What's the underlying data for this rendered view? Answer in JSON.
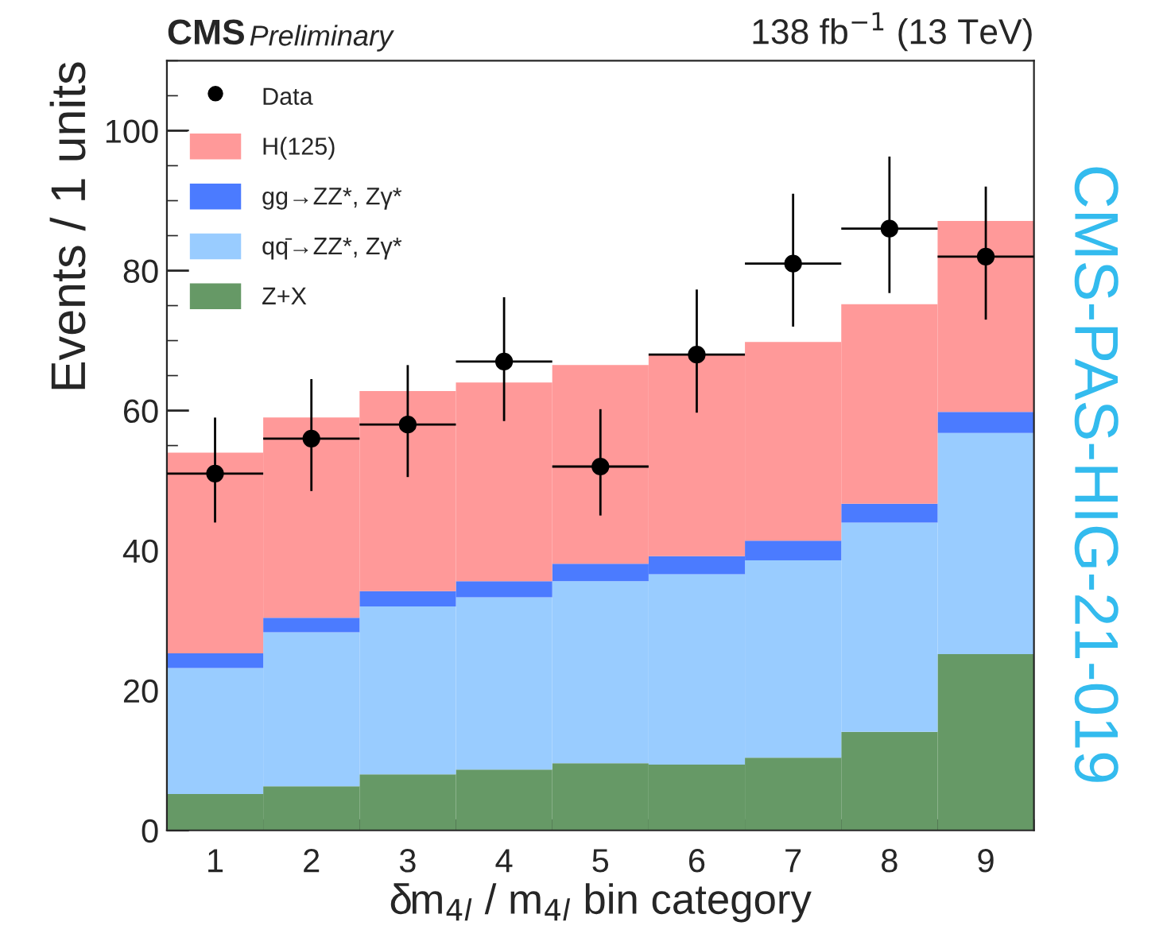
{
  "chart_data": {
    "type": "bar",
    "stacked": true,
    "title": "CMS",
    "subtitle": "Preliminary",
    "xlabel": "δm$_{4l}$ / m$_{4l}$ bin category",
    "ylabel": "Events / 1 units",
    "x": [
      1,
      2,
      3,
      4,
      5,
      6,
      7,
      8,
      9
    ],
    "xlim": [
      0.5,
      9.5
    ],
    "xticks": [
      1,
      2,
      3,
      4,
      5,
      6,
      7,
      8,
      9
    ],
    "series": [
      {
        "name": "Z+X",
        "color": "#669966",
        "values": [
          5.2,
          6.3,
          8,
          8.7,
          9.6,
          9.4,
          10.4,
          14.1,
          25.2
        ]
      },
      {
        "name": "qq̄→ZZ*, Zγ*",
        "color": "#99ccff",
        "values": [
          18,
          22,
          24,
          24.6,
          26,
          27.2,
          28.2,
          29.9,
          31.6
        ]
      },
      {
        "name": "gg→ZZ*, Zγ*",
        "color": "#4b7bff",
        "values": [
          2.1,
          2.1,
          2.2,
          2.3,
          2.5,
          2.6,
          2.8,
          2.7,
          3.0
        ]
      },
      {
        "name": "H(125)",
        "color": "#ff9999",
        "values": [
          28.7,
          28.6,
          28.6,
          28.4,
          28.4,
          28.8,
          28.4,
          28.5,
          27.3
        ]
      },
      {
        "name": "Data",
        "type": "scatter",
        "color": "#000000",
        "marker": "circle",
        "x": [
          1,
          2,
          3,
          4,
          5,
          6,
          7,
          8,
          9
        ],
        "values": [
          51,
          56,
          58,
          67,
          52,
          68,
          81,
          86,
          82
        ],
        "errors": [
          [
            44,
            59
          ],
          [
            48.5,
            64.5
          ],
          [
            50.5,
            66.5
          ],
          [
            58.5,
            76.2
          ],
          [
            45,
            60.2
          ],
          [
            59.7,
            77.3
          ],
          [
            72,
            91
          ],
          [
            76.8,
            96.3
          ],
          [
            73,
            92
          ]
        ],
        "xerrors": [
          0.5,
          0.5,
          0.5,
          0.5,
          0.5,
          0.5,
          0.5,
          0.5,
          0.5
        ]
      }
    ],
    "ylim": [
      0,
      110
    ],
    "yticks": [
      0,
      20,
      40,
      60,
      80,
      100
    ],
    "grid": false,
    "legend": "top left",
    "annotations": [
      "138 fb$^{−1}$ (13 TeV)",
      "CMS-PAS-HIG-21-019"
    ]
  }
}
